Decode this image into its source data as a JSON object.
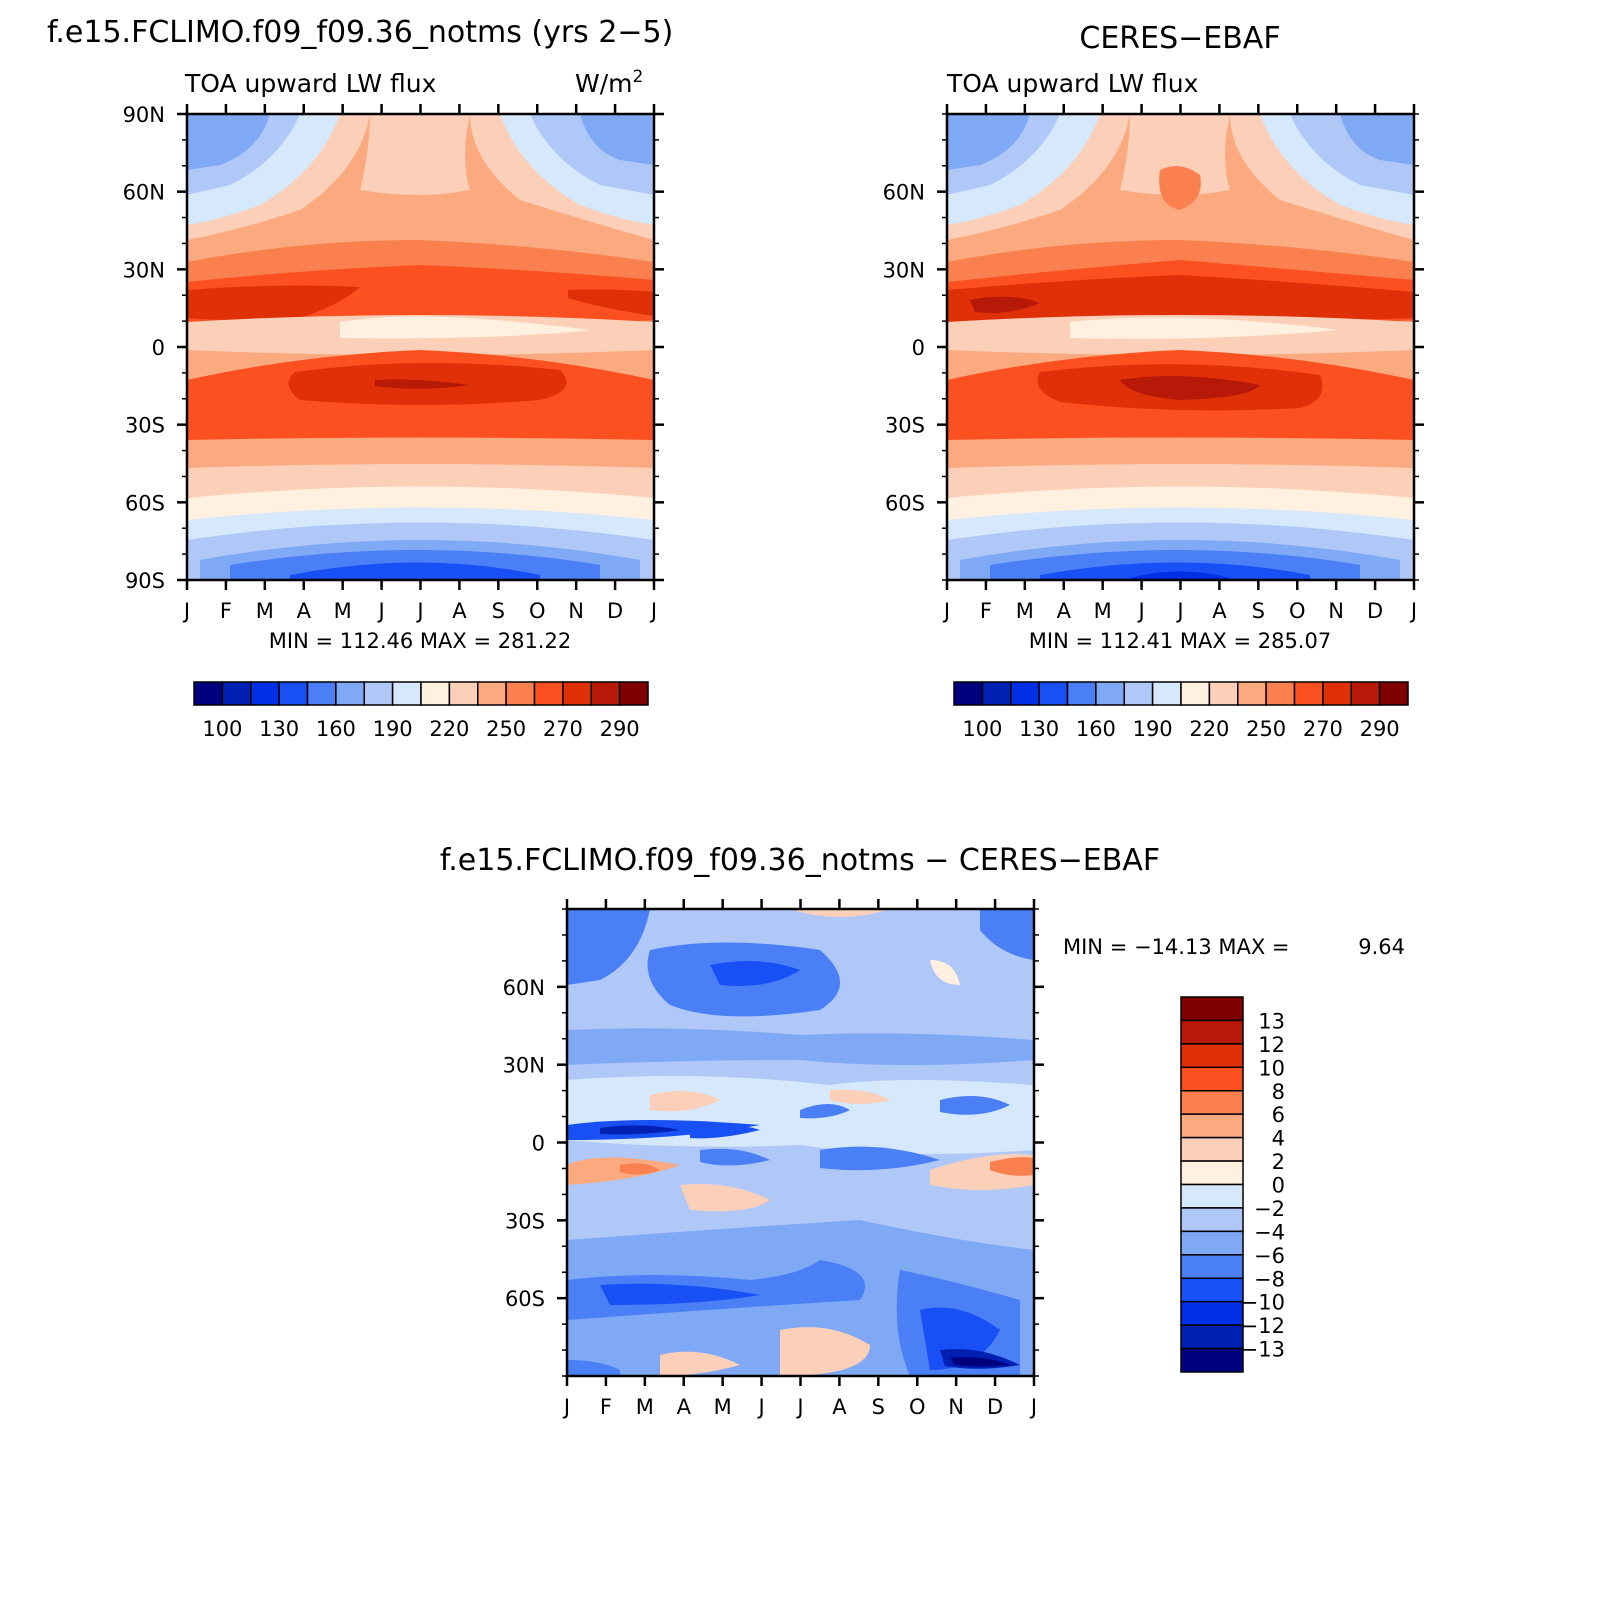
{
  "page_title": "f.e15.FCLIMO.f09_f09.36_notms (yrs 2-5)",
  "chart_data": [
    {
      "type": "heatmap",
      "title": "f.e15.FCLIMO.f09_f09.36_notms (yrs 2−5)",
      "subtitle_left": "TOA upward LW flux",
      "subtitle_right": "W/m",
      "subtitle_right_sup": "2",
      "x_tick_labels": [
        "J",
        "F",
        "M",
        "A",
        "M",
        "J",
        "J",
        "A",
        "S",
        "O",
        "N",
        "D",
        "J"
      ],
      "y_tick_labels": [
        "90N",
        "60N",
        "30N",
        "0",
        "30S",
        "60S",
        "90S"
      ],
      "y_ticks": [
        90,
        60,
        30,
        0,
        -30,
        -60,
        -90
      ],
      "xlim": [
        0,
        12
      ],
      "ylim": [
        -90,
        90
      ],
      "stats": "MIN = 112.46 MAX = 281.22",
      "min": 112.46,
      "max": 281.22,
      "colorbar": {
        "orientation": "horizontal",
        "levels": [
          100,
          115,
          130,
          145,
          160,
          175,
          190,
          205,
          220,
          235,
          250,
          260,
          270,
          280,
          290
        ],
        "labels": [
          "100",
          "130",
          "160",
          "190",
          "220",
          "250",
          "270",
          "290"
        ],
        "colors": [
          "#00007f",
          "#0020b3",
          "#0030e6",
          "#1850f5",
          "#4a7ff5",
          "#7fa8f5",
          "#b0c8f8",
          "#d6e8fb",
          "#fff0e0",
          "#fcd0b8",
          "#fbaa80",
          "#fa8050",
          "#fc5020",
          "#e03008",
          "#b81808",
          "#800000"
        ]
      },
      "series": []
    },
    {
      "type": "heatmap",
      "title": "CERES−EBAF",
      "subtitle_left": "TOA upward LW flux",
      "x_tick_labels": [
        "J",
        "F",
        "M",
        "A",
        "M",
        "J",
        "J",
        "A",
        "S",
        "O",
        "N",
        "D",
        "J"
      ],
      "y_tick_labels": [
        "60N",
        "30N",
        "0",
        "30S",
        "60S"
      ],
      "y_ticks": [
        60,
        30,
        0,
        -30,
        -60
      ],
      "xlim": [
        0,
        12
      ],
      "ylim": [
        -90,
        90
      ],
      "stats": "MIN = 112.41 MAX = 285.07",
      "min": 112.41,
      "max": 285.07,
      "colorbar": {
        "orientation": "horizontal",
        "levels": [
          100,
          115,
          130,
          145,
          160,
          175,
          190,
          205,
          220,
          235,
          250,
          260,
          270,
          280,
          290
        ],
        "labels": [
          "100",
          "130",
          "160",
          "190",
          "220",
          "250",
          "270",
          "290"
        ],
        "colors": [
          "#00007f",
          "#0020b3",
          "#0030e6",
          "#1850f5",
          "#4a7ff5",
          "#7fa8f5",
          "#b0c8f8",
          "#d6e8fb",
          "#fff0e0",
          "#fcd0b8",
          "#fbaa80",
          "#fa8050",
          "#fc5020",
          "#e03008",
          "#b81808",
          "#800000"
        ]
      }
    },
    {
      "type": "heatmap",
      "title": "f.e15.FCLIMO.f09_f09.36_notms − CERES−EBAF",
      "x_tick_labels": [
        "J",
        "F",
        "M",
        "A",
        "M",
        "J",
        "J",
        "A",
        "S",
        "O",
        "N",
        "D",
        "J"
      ],
      "y_tick_labels": [
        "60N",
        "30N",
        "0",
        "30S",
        "60S"
      ],
      "y_ticks": [
        60,
        30,
        0,
        -30,
        -60
      ],
      "xlim": [
        0,
        12
      ],
      "ylim": [
        -90,
        90
      ],
      "stats_min_label": "MIN = −14.13 MAX =",
      "stats_max_value": "9.64",
      "min": -14.13,
      "max": 9.64,
      "colorbar": {
        "orientation": "vertical",
        "levels": [
          -13,
          -12,
          -10,
          -8,
          -6,
          -4,
          -2,
          0,
          2,
          4,
          6,
          8,
          10,
          12,
          13
        ],
        "labels": [
          "13",
          "12",
          "10",
          "8",
          "6",
          "4",
          "2",
          "0",
          "−2",
          "−4",
          "−6",
          "−8",
          "−10",
          "−12",
          "−13"
        ],
        "colors": [
          "#00007f",
          "#0020b3",
          "#0030e6",
          "#1850f5",
          "#4a7ff5",
          "#7fa8f5",
          "#b0c8f8",
          "#d6e8fb",
          "#fff0e0",
          "#fcd0b8",
          "#fbaa80",
          "#fa8050",
          "#fc5020",
          "#e03008",
          "#b81808",
          "#800000"
        ]
      }
    }
  ]
}
